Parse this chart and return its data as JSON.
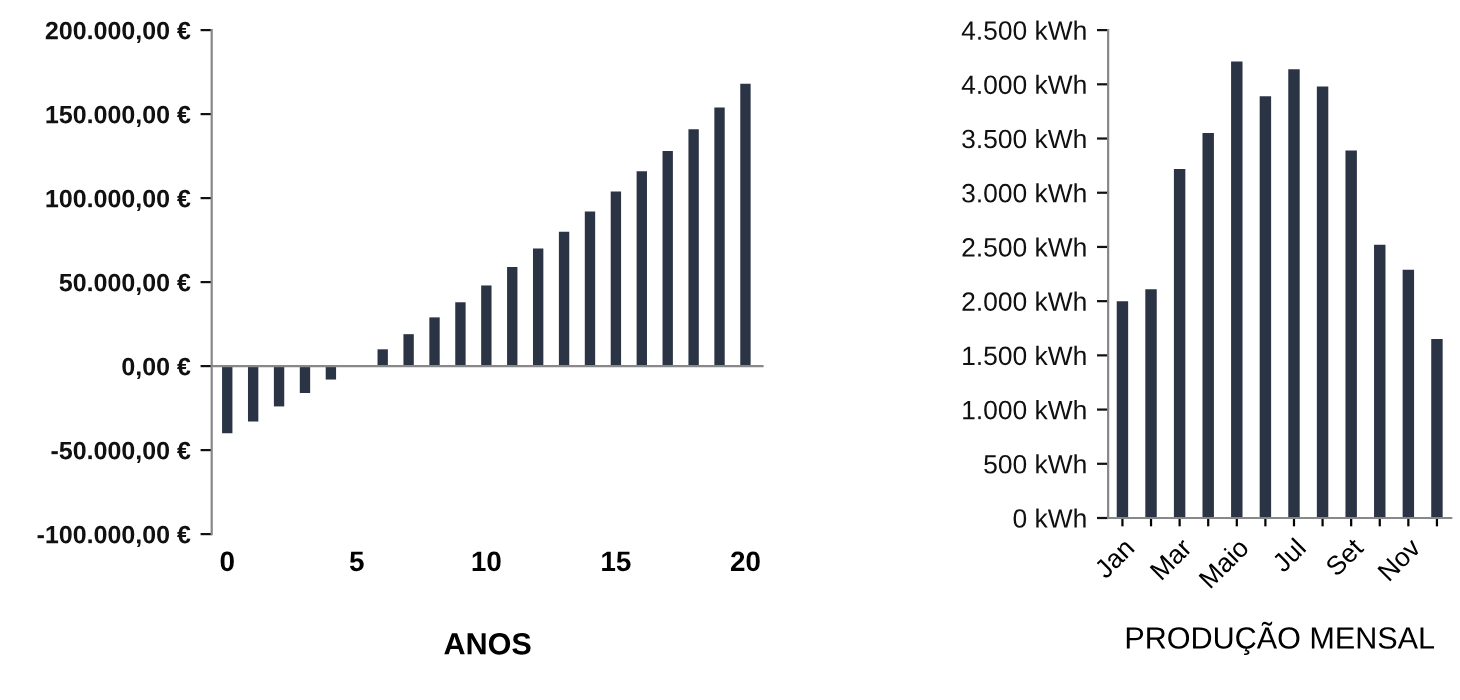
{
  "chart_data": [
    {
      "type": "bar",
      "xlabel": "ANOS",
      "x": [
        0,
        1,
        2,
        3,
        4,
        5,
        6,
        7,
        8,
        9,
        10,
        11,
        12,
        13,
        14,
        15,
        16,
        17,
        18,
        19,
        20
      ],
      "values": [
        -40000,
        -33000,
        -24000,
        -16000,
        -8000,
        500,
        10000,
        19000,
        29000,
        38000,
        48000,
        59000,
        70000,
        80000,
        92000,
        104000,
        116000,
        128000,
        141000,
        154000,
        168000
      ],
      "ref_lines": [
        {
          "axis": "y",
          "value": 0,
          "color": "#888888"
        }
      ],
      "color": "#2b3444",
      "xlim": [
        -0.6,
        20.7
      ],
      "xticks": [
        0,
        5,
        10,
        15,
        20
      ],
      "ylim": [
        -100000,
        200000
      ],
      "yticks": [
        {
          "value": -100000,
          "label": "-100.000,00 €"
        },
        {
          "value": -50000,
          "label": "-50.000,00 €"
        },
        {
          "value": 0,
          "label": "0,00 €"
        },
        {
          "value": 50000,
          "label": "50.000,00 €"
        },
        {
          "value": 100000,
          "label": "100.000,00 €"
        },
        {
          "value": 150000,
          "label": "150.000,00 €"
        },
        {
          "value": 200000,
          "label": "200.000,00 €"
        }
      ],
      "grid": false,
      "legend": false
    },
    {
      "type": "bar",
      "xlabel": "PRODUÇÃO MENSAL",
      "categories": [
        "Jan",
        null,
        "Mar",
        null,
        "Maio",
        null,
        "Jul",
        null,
        "Set",
        null,
        "Nov",
        null
      ],
      "values": [
        2000,
        2110,
        3220,
        3550,
        4210,
        3890,
        4140,
        3980,
        3390,
        2520,
        2290,
        1650
      ],
      "color": "#2b3444",
      "ylim": [
        0,
        4500
      ],
      "yticks": [
        {
          "value": 0,
          "label": "0 kWh"
        },
        {
          "value": 500,
          "label": "500 kWh"
        },
        {
          "value": 1000,
          "label": "1.000 kWh"
        },
        {
          "value": 1500,
          "label": "1.500 kWh"
        },
        {
          "value": 2000,
          "label": "2.000 kWh"
        },
        {
          "value": 2500,
          "label": "2.500 kWh"
        },
        {
          "value": 3000,
          "label": "3.000 kWh"
        },
        {
          "value": 3500,
          "label": "3.500 kWh"
        },
        {
          "value": 4000,
          "label": "4.000 kWh"
        },
        {
          "value": 4500,
          "label": "4.500 kWh"
        }
      ],
      "grid": false,
      "legend": false
    }
  ]
}
